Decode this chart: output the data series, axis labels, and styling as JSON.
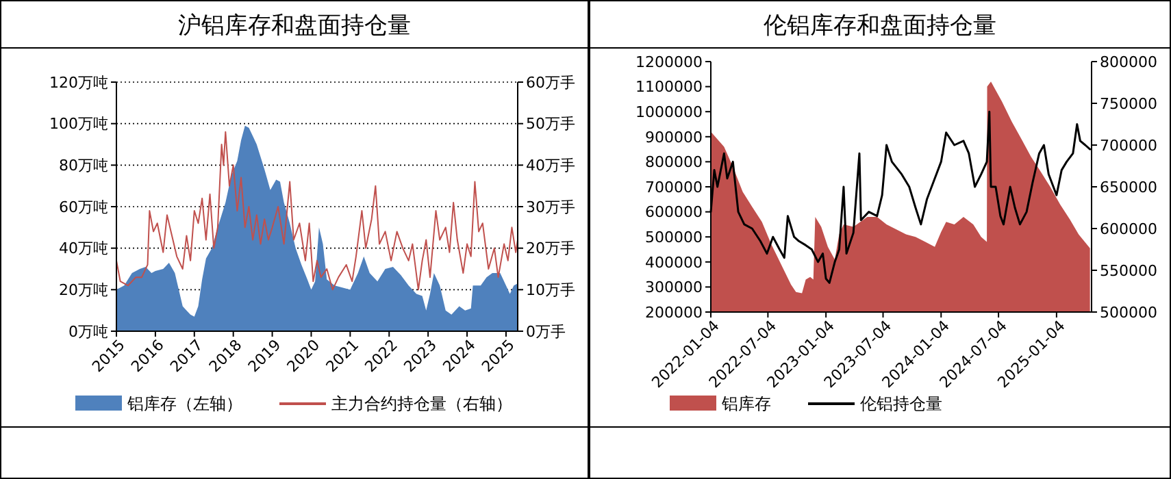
{
  "chart_data": [
    {
      "type": "area",
      "title": "沪铝库存和盘面持仓量",
      "grid": "y",
      "legend": "bottom",
      "xlim": [
        2015,
        2025.3
      ],
      "xticks": [
        2015,
        2016,
        2017,
        2018,
        2019,
        2020,
        2021,
        2022,
        2023,
        2024,
        2025
      ],
      "ylim": [
        0,
        120
      ],
      "yticks": [
        {
          "value": 0,
          "label": "0万吨"
        },
        {
          "value": 20,
          "label": "20万吨"
        },
        {
          "value": 40,
          "label": "40万吨"
        },
        {
          "value": 60,
          "label": "60万吨"
        },
        {
          "value": 80,
          "label": "80万吨"
        },
        {
          "value": 100,
          "label": "100万吨"
        },
        {
          "value": 120,
          "label": "120万吨"
        }
      ],
      "y2lim": [
        0,
        60
      ],
      "y2ticks": [
        {
          "value": 0,
          "label": "0万手"
        },
        {
          "value": 10,
          "label": "10万手"
        },
        {
          "value": 20,
          "label": "20万手"
        },
        {
          "value": 30,
          "label": "30万手"
        },
        {
          "value": 40,
          "label": "40万手"
        },
        {
          "value": 50,
          "label": "50万手"
        },
        {
          "value": 60,
          "label": "60万手"
        }
      ],
      "series": [
        {
          "name": "铝库存（左轴）",
          "color": "#4f81bd",
          "x": [
            2015.0,
            2015.2,
            2015.4,
            2015.6,
            2015.75,
            2015.9,
            2016.0,
            2016.2,
            2016.35,
            2016.5,
            2016.6,
            2016.7,
            2016.8,
            2016.9,
            2017.0,
            2017.1,
            2017.2,
            2017.3,
            2017.45,
            2017.6,
            2017.8,
            2017.95,
            2018.1,
            2018.2,
            2018.3,
            2018.4,
            2018.5,
            2018.6,
            2018.7,
            2018.8,
            2018.95,
            2019.1,
            2019.2,
            2019.3,
            2019.45,
            2019.6,
            2019.75,
            2019.9,
            2020.0,
            2020.1,
            2020.2,
            2020.3,
            2020.4,
            2020.6,
            2020.8,
            2021.0,
            2021.2,
            2021.35,
            2021.5,
            2021.7,
            2021.9,
            2022.1,
            2022.3,
            2022.5,
            2022.7,
            2022.85,
            2022.95,
            2023.05,
            2023.15,
            2023.3,
            2023.45,
            2023.6,
            2023.8,
            2023.95,
            2024.1,
            2024.15,
            2024.35,
            2024.5,
            2024.65,
            2024.85,
            2025.0,
            2025.1,
            2025.2,
            2025.3
          ],
          "values": [
            20,
            22,
            28,
            30,
            31,
            28,
            29,
            30,
            33,
            28,
            20,
            12,
            10,
            8,
            7,
            12,
            25,
            35,
            40,
            50,
            62,
            75,
            82,
            92,
            99,
            98,
            94,
            90,
            84,
            78,
            68,
            73,
            72,
            62,
            52,
            40,
            32,
            25,
            20,
            24,
            50,
            42,
            25,
            22,
            21,
            20,
            28,
            36,
            28,
            24,
            30,
            31,
            27,
            22,
            18,
            17,
            10,
            18,
            28,
            22,
            10,
            8,
            12,
            10,
            11,
            22,
            22,
            26,
            28,
            28,
            22,
            18,
            22,
            23
          ]
        },
        {
          "name": "主力合约持仓量（右轴）",
          "type": "line",
          "axis": "y2",
          "color": "#c0504d",
          "x": [
            2015.0,
            2015.1,
            2015.3,
            2015.5,
            2015.65,
            2015.8,
            2015.85,
            2015.95,
            2016.05,
            2016.2,
            2016.3,
            2016.4,
            2016.55,
            2016.7,
            2016.8,
            2016.9,
            2017.0,
            2017.1,
            2017.2,
            2017.3,
            2017.4,
            2017.5,
            2017.6,
            2017.7,
            2017.75,
            2017.8,
            2017.9,
            2018.0,
            2018.1,
            2018.2,
            2018.3,
            2018.4,
            2018.5,
            2018.6,
            2018.7,
            2018.8,
            2018.9,
            2019.0,
            2019.15,
            2019.3,
            2019.45,
            2019.55,
            2019.7,
            2019.85,
            2019.95,
            2020.05,
            2020.15,
            2020.25,
            2020.4,
            2020.55,
            2020.7,
            2020.9,
            2021.05,
            2021.15,
            2021.3,
            2021.4,
            2021.55,
            2021.65,
            2021.75,
            2021.9,
            2022.05,
            2022.2,
            2022.35,
            2022.5,
            2022.6,
            2022.75,
            2022.85,
            2022.95,
            2023.05,
            2023.2,
            2023.3,
            2023.45,
            2023.55,
            2023.65,
            2023.75,
            2023.9,
            2024.0,
            2024.1,
            2024.2,
            2024.3,
            2024.4,
            2024.55,
            2024.7,
            2024.8,
            2024.95,
            2025.05,
            2025.15,
            2025.25,
            2025.3
          ],
          "values": [
            17,
            12,
            11,
            13,
            13,
            16,
            29,
            24,
            26,
            19,
            28,
            24,
            18,
            15,
            23,
            17,
            29,
            26,
            32,
            22,
            33,
            20,
            25,
            45,
            40,
            48,
            35,
            40,
            29,
            37,
            25,
            30,
            22,
            28,
            21,
            27,
            22,
            25,
            30,
            21,
            36,
            22,
            26,
            17,
            26,
            12,
            17,
            13,
            15,
            10,
            13,
            16,
            12,
            18,
            29,
            20,
            27,
            35,
            21,
            24,
            17,
            24,
            20,
            17,
            21,
            10,
            17,
            22,
            13,
            29,
            22,
            25,
            19,
            31,
            22,
            14,
            21,
            18,
            36,
            24,
            26,
            15,
            20,
            13,
            21,
            17,
            25,
            19,
            22
          ]
        }
      ]
    },
    {
      "type": "area",
      "title": "伦铝库存和盘面持仓量",
      "legend": "bottom",
      "xlim": [
        "2022-01-04",
        "2025-04-25"
      ],
      "xticks": [
        "2022-01-04",
        "2022-07-04",
        "2023-01-04",
        "2023-07-04",
        "2024-01-04",
        "2024-07-04",
        "2025-01-04"
      ],
      "ylim": [
        200000,
        1200000
      ],
      "yticks": [
        200000,
        300000,
        400000,
        500000,
        600000,
        700000,
        800000,
        900000,
        1000000,
        1100000,
        1200000
      ],
      "y2lim": [
        500000,
        800000
      ],
      "y2ticks": [
        500000,
        550000,
        600000,
        650000,
        700000,
        750000,
        800000
      ],
      "series": [
        {
          "name": "铝库存",
          "color": "#c0504d",
          "x": [
            "2022-01-04",
            "2022-02-15",
            "2022-03-15",
            "2022-04-15",
            "2022-05-15",
            "2022-06-15",
            "2022-07-15",
            "2022-08-15",
            "2022-09-15",
            "2022-10-01",
            "2022-10-20",
            "2022-11-01",
            "2022-11-15",
            "2022-11-25",
            "2022-12-01",
            "2022-12-20",
            "2023-01-10",
            "2023-02-01",
            "2023-02-15",
            "2023-03-01",
            "2023-04-01",
            "2023-05-15",
            "2023-06-15",
            "2023-07-15",
            "2023-08-15",
            "2023-09-15",
            "2023-10-15",
            "2023-11-15",
            "2023-12-15",
            "2024-01-04",
            "2024-01-20",
            "2024-02-15",
            "2024-03-15",
            "2024-04-15",
            "2024-05-10",
            "2024-05-28",
            "2024-05-29",
            "2024-06-10",
            "2024-07-15",
            "2024-08-15",
            "2024-09-15",
            "2024-10-15",
            "2024-11-15",
            "2024-12-15",
            "2025-01-15",
            "2025-02-15",
            "2025-03-15",
            "2025-04-20"
          ],
          "values": [
            920000,
            860000,
            780000,
            680000,
            620000,
            560000,
            470000,
            390000,
            310000,
            280000,
            275000,
            330000,
            340000,
            330000,
            580000,
            540000,
            460000,
            410000,
            510000,
            550000,
            540000,
            580000,
            580000,
            550000,
            530000,
            510000,
            500000,
            480000,
            460000,
            520000,
            560000,
            550000,
            580000,
            550000,
            500000,
            480000,
            1100000,
            1120000,
            1040000,
            960000,
            890000,
            820000,
            760000,
            700000,
            630000,
            570000,
            510000,
            455000
          ]
        },
        {
          "name": "伦铝持仓量",
          "type": "line",
          "axis": "y2",
          "color": "#000000",
          "x": [
            "2022-01-04",
            "2022-01-15",
            "2022-01-25",
            "2022-02-15",
            "2022-02-25",
            "2022-03-15",
            "2022-04-01",
            "2022-04-20",
            "2022-05-15",
            "2022-06-10",
            "2022-07-01",
            "2022-07-20",
            "2022-08-10",
            "2022-08-25",
            "2022-09-05",
            "2022-09-25",
            "2022-10-10",
            "2022-11-01",
            "2022-11-20",
            "2022-12-10",
            "2022-12-25",
            "2023-01-04",
            "2023-01-15",
            "2023-02-01",
            "2023-02-15",
            "2023-03-01",
            "2023-03-10",
            "2023-04-01",
            "2023-04-20",
            "2023-04-25",
            "2023-05-20",
            "2023-06-15",
            "2023-07-01",
            "2023-07-15",
            "2023-08-01",
            "2023-09-01",
            "2023-09-25",
            "2023-10-15",
            "2023-11-01",
            "2023-11-20",
            "2023-12-15",
            "2024-01-04",
            "2024-01-20",
            "2024-02-15",
            "2024-03-15",
            "2024-04-01",
            "2024-04-20",
            "2024-05-10",
            "2024-05-28",
            "2024-06-05",
            "2024-06-10",
            "2024-06-25",
            "2024-07-10",
            "2024-07-20",
            "2024-08-10",
            "2024-08-25",
            "2024-09-10",
            "2024-10-01",
            "2024-10-20",
            "2024-11-10",
            "2024-11-25",
            "2024-12-10",
            "2025-01-04",
            "2025-01-20",
            "2025-02-05",
            "2025-02-25",
            "2025-03-10",
            "2025-03-20",
            "2025-04-05",
            "2025-04-20"
          ],
          "values": [
            620000,
            670000,
            650000,
            690000,
            660000,
            680000,
            620000,
            605000,
            600000,
            585000,
            570000,
            590000,
            575000,
            565000,
            615000,
            590000,
            585000,
            580000,
            575000,
            560000,
            570000,
            540000,
            535000,
            560000,
            575000,
            650000,
            570000,
            595000,
            690000,
            610000,
            620000,
            615000,
            640000,
            700000,
            680000,
            665000,
            650000,
            625000,
            605000,
            635000,
            660000,
            680000,
            715000,
            700000,
            705000,
            690000,
            650000,
            665000,
            680000,
            740000,
            650000,
            650000,
            615000,
            605000,
            650000,
            625000,
            605000,
            620000,
            655000,
            690000,
            700000,
            665000,
            640000,
            670000,
            680000,
            690000,
            725000,
            705000,
            700000,
            695000
          ]
        }
      ]
    }
  ]
}
